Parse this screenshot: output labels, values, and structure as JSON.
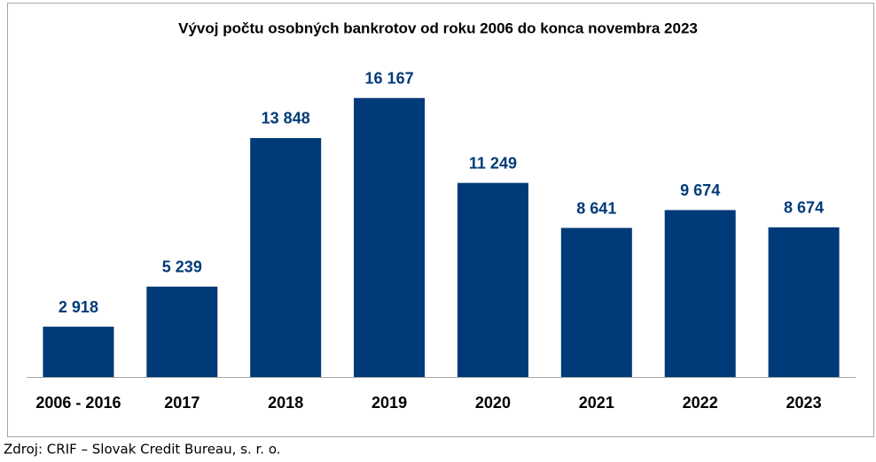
{
  "chart_data": {
    "type": "bar",
    "title": "Vývoj počtu osobných bankrotov od roku 2006 do konca novembra 2023",
    "categories": [
      "2006 - 2016",
      "2017",
      "2018",
      "2019",
      "2020",
      "2021",
      "2022",
      "2023"
    ],
    "values": [
      2918,
      5239,
      13848,
      16167,
      11249,
      8641,
      9674,
      8674
    ],
    "value_labels": [
      "2 918",
      "5 239",
      "13 848",
      "16 167",
      "11 249",
      "8 641",
      "9 674",
      "8 674"
    ],
    "color": "#003a78",
    "ylim": [
      0,
      18000
    ],
    "source": "Zdroj: CRIF – Slovak Credit Bureau, s. r. o."
  }
}
